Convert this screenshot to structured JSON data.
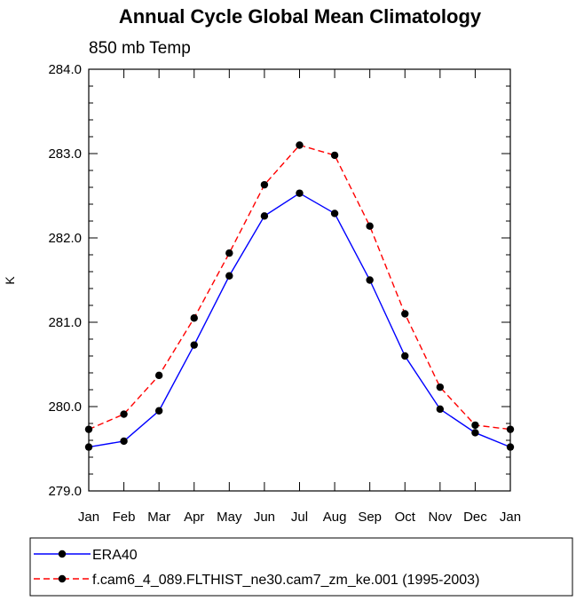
{
  "chart_data": {
    "type": "line",
    "title": "Annual Cycle Global Mean Climatology",
    "subtitle": "850 mb Temp",
    "xlabel": "",
    "ylabel": "K",
    "categories": [
      "Jan",
      "Feb",
      "Mar",
      "Apr",
      "May",
      "Jun",
      "Jul",
      "Aug",
      "Sep",
      "Oct",
      "Nov",
      "Dec",
      "Jan"
    ],
    "ylim": [
      279.0,
      284.0
    ],
    "yticks": [
      "279.0",
      "280.0",
      "281.0",
      "282.0",
      "283.0",
      "284.0"
    ],
    "series": [
      {
        "name": "ERA40",
        "color": "#0000ff",
        "dash": "solid",
        "marker": "circle",
        "values": [
          279.52,
          279.59,
          279.95,
          280.73,
          281.55,
          282.26,
          282.53,
          282.29,
          281.5,
          280.6,
          279.97,
          279.69,
          279.52
        ]
      },
      {
        "name": "f.cam6_4_089.FLTHIST_ne30.cam7_zm_ke.001 (1995-2003)",
        "color": "#ff0000",
        "dash": "dashed",
        "marker": "circle",
        "values": [
          279.73,
          279.91,
          280.37,
          281.05,
          281.82,
          282.63,
          283.1,
          282.98,
          282.14,
          281.1,
          280.23,
          279.78,
          279.73
        ]
      }
    ],
    "legend_position": "bottom",
    "grid": false
  }
}
